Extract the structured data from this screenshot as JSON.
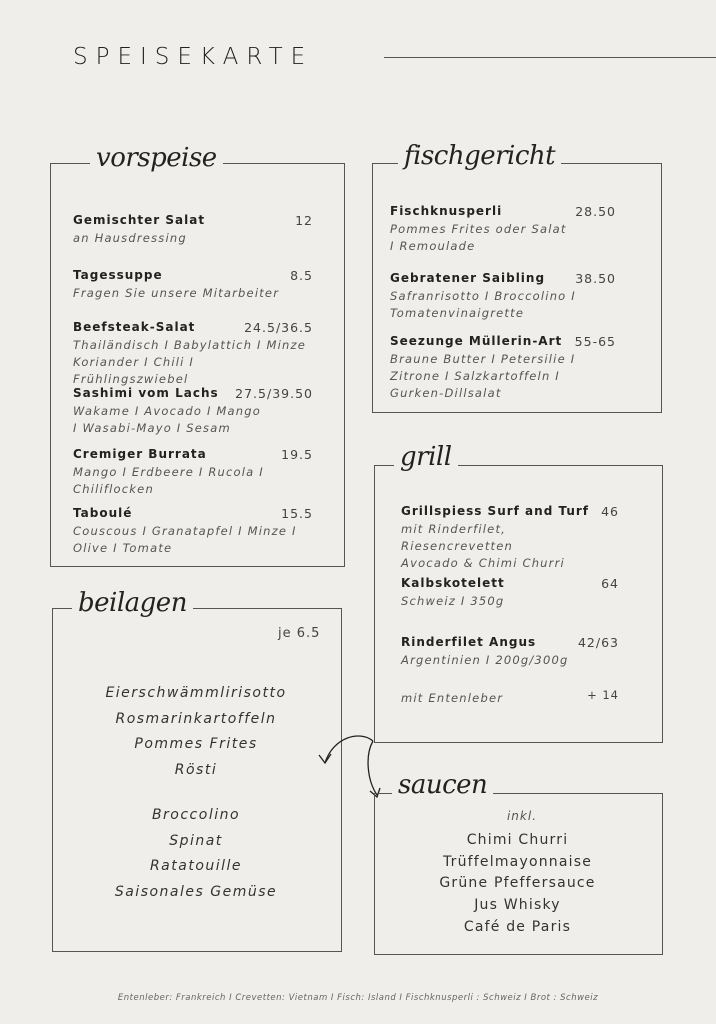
{
  "title": "SPEISEKARTE",
  "vorspeise": {
    "heading": "vorspeise",
    "items": [
      {
        "name": "Gemischter Salat",
        "price": "12",
        "desc": [
          "an Hausdressing"
        ]
      },
      {
        "name": "Tagessuppe",
        "price": "8.5",
        "desc": [
          "Fragen Sie unsere Mitarbeiter"
        ]
      },
      {
        "name": "Beefsteak-Salat",
        "price": "24.5/36.5",
        "desc": [
          "Thailändisch I Babylattich I Minze",
          "Koriander I Chili I Frühlingszwiebel"
        ]
      },
      {
        "name": "Sashimi vom Lachs",
        "price": "27.5/39.50",
        "desc": [
          "Wakame I Avocado I Mango",
          "I Wasabi-Mayo I Sesam"
        ]
      },
      {
        "name": "Cremiger Burrata",
        "price": "19.5",
        "desc": [
          "Mango I Erdbeere I Rucola I",
          "Chiliflocken"
        ]
      },
      {
        "name": "Taboulé",
        "price": "15.5",
        "desc": [
          "Couscous I Granatapfel I Minze I",
          "Olive I Tomate"
        ]
      }
    ]
  },
  "fischgericht": {
    "heading": "fischgericht",
    "items": [
      {
        "name": "Fischknusperli",
        "price": "28.50",
        "desc": [
          "Pommes Frites oder Salat",
          "I Remoulade"
        ]
      },
      {
        "name": "Gebratener Saibling",
        "price": "38.50",
        "desc": [
          "Safranrisotto I Broccolino I",
          "Tomatenvinaigrette"
        ]
      },
      {
        "name": "Seezunge Müllerin-Art",
        "price": "55-65",
        "desc": [
          "Braune Butter I Petersilie I",
          "Zitrone I Salzkartoffeln I",
          "Gurken-Dillsalat"
        ]
      }
    ]
  },
  "grill": {
    "heading": "grill",
    "items": [
      {
        "name": "Grillspiess Surf and Turf",
        "price": "46",
        "desc": [
          "mit Rinderfilet, Riesencrevetten",
          "Avocado & Chimi Churri"
        ]
      },
      {
        "name": "Kalbskotelett",
        "price": "64",
        "desc": [
          "Schweiz I 350g"
        ]
      },
      {
        "name": "Rinderfilet Angus",
        "price": "42/63",
        "desc": [
          "Argentinien I 200g/300g"
        ]
      }
    ],
    "extra": {
      "label": "mit Entenleber",
      "price": "+ 14"
    }
  },
  "beilagen": {
    "heading": "beilagen",
    "price": "je 6.5",
    "group1": [
      "Eierschwämmlirisotto",
      "Rosmarinkartoffeln",
      "Pommes Frites",
      "Rösti"
    ],
    "group2": [
      "Broccolino",
      "Spinat",
      "Ratatouille",
      "Saisonales Gemüse"
    ]
  },
  "saucen": {
    "heading": "saucen",
    "note": "inkl.",
    "items": [
      "Chimi Churri",
      "Trüffelmayonnaise",
      "Grüne Pfeffersauce",
      "Jus Whisky",
      "Café de Paris"
    ]
  },
  "footer": "Entenleber: Frankreich I Crevetten: Vietnam I Fisch: Island I Fischknusperli : Schweiz I Brot : Schweiz"
}
